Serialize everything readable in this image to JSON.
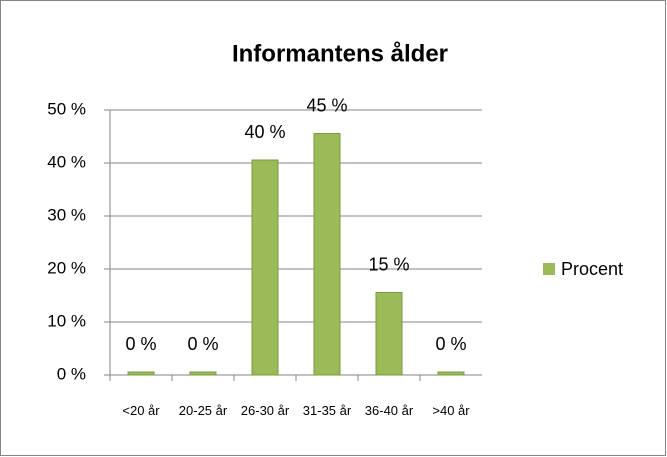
{
  "chart_data": {
    "type": "bar",
    "title": "Informantens ålder",
    "categories": [
      "<20 år",
      "20-25 år",
      "26-30 år",
      "31-35 år",
      "36-40 år",
      ">40 år"
    ],
    "series": [
      {
        "name": "Procent",
        "color": "#9bbb59",
        "values": [
          0,
          0,
          40,
          45,
          15,
          0
        ],
        "value_labels": [
          "0 %",
          "0 %",
          "40 %",
          "45 %",
          "15 %",
          "0 %"
        ]
      }
    ],
    "ylim": [
      0,
      50
    ],
    "yticks": [
      {
        "value": 0,
        "label": "0 %"
      },
      {
        "value": 10,
        "label": "10 %"
      },
      {
        "value": 20,
        "label": "20 %"
      },
      {
        "value": 30,
        "label": "30 %"
      },
      {
        "value": 40,
        "label": "40 %"
      },
      {
        "value": 50,
        "label": "50 %"
      }
    ],
    "grid": true,
    "legend": "right"
  }
}
